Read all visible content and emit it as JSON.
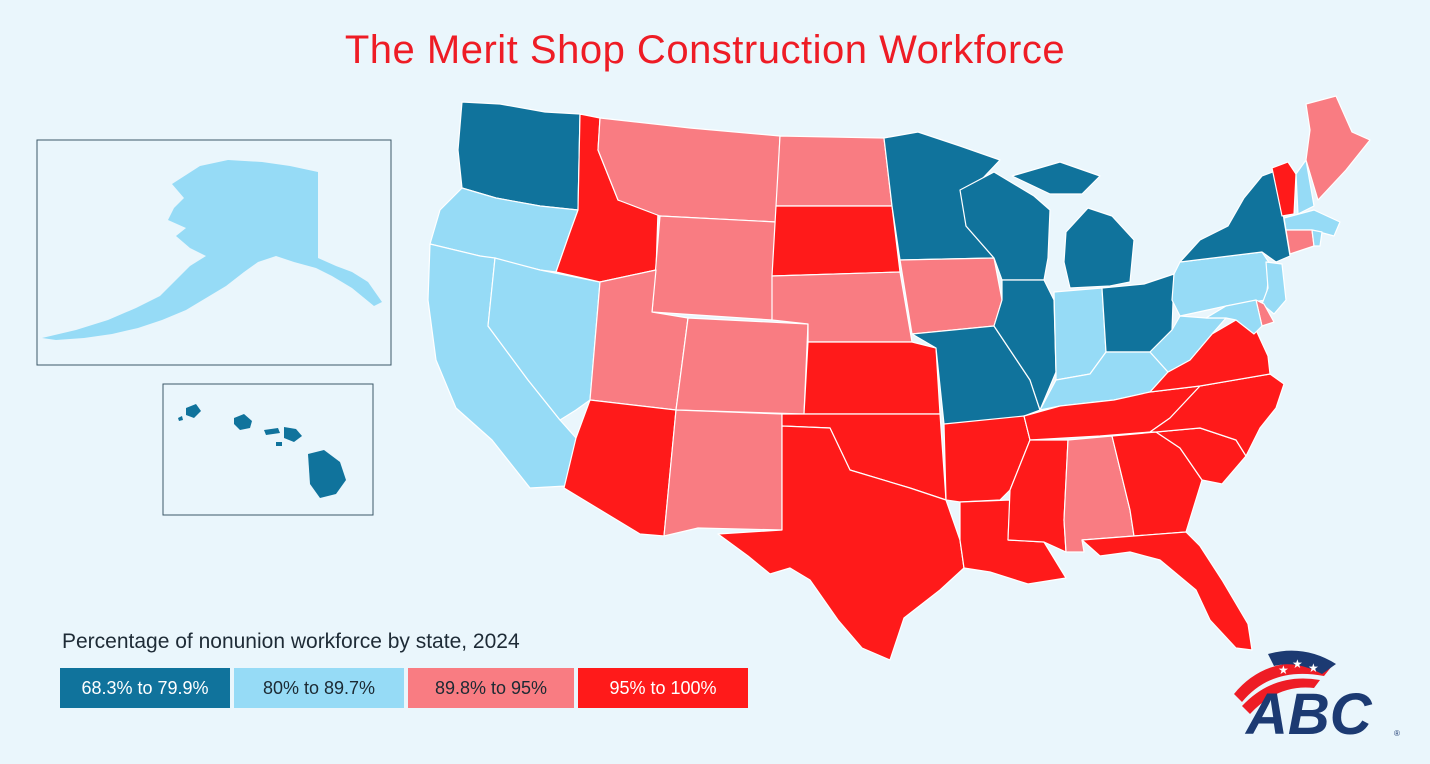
{
  "title": "The Merit Shop Construction Workforce",
  "legend": {
    "title": "Percentage of nonunion workforce by state, 2024",
    "items": [
      {
        "label": "68.3% to 79.9%",
        "color": "#10739c",
        "text_color": "#ffffff"
      },
      {
        "label": "80% to 89.7%",
        "color": "#96dbf6",
        "text_color": "#1c2a33"
      },
      {
        "label": "89.8% to 95%",
        "color": "#f97c82",
        "text_color": "#1c2a33"
      },
      {
        "label": "95% to 100%",
        "color": "#ff1a1a",
        "text_color": "#ffffff"
      }
    ]
  },
  "states": {
    "WA": 0,
    "OR": 1,
    "CA": 1,
    "NV": 1,
    "ID": 3,
    "MT": 2,
    "WY": 2,
    "UT": 2,
    "AZ": 3,
    "CO": 2,
    "NM": 2,
    "ND": 2,
    "SD": 3,
    "NE": 2,
    "KS": 3,
    "OK": 3,
    "TX": 3,
    "MN": 0,
    "IA": 2,
    "MO": 0,
    "AR": 3,
    "LA": 3,
    "WI": 0,
    "IL": 0,
    "MI": 0,
    "IN": 1,
    "OH": 0,
    "KY": 1,
    "TN": 3,
    "MS": 3,
    "AL": 2,
    "GA": 3,
    "FL": 3,
    "SC": 3,
    "NC": 3,
    "VA": 3,
    "WV": 1,
    "PA": 1,
    "NY": 0,
    "VT": 3,
    "NH": 1,
    "ME": 2,
    "MA": 1,
    "CT": 2,
    "RI": 1,
    "NJ": 1,
    "DE": 2,
    "MD": 1,
    "AK": 1,
    "HI": 0
  },
  "logo": {
    "text": "ABC",
    "mark": "®"
  }
}
